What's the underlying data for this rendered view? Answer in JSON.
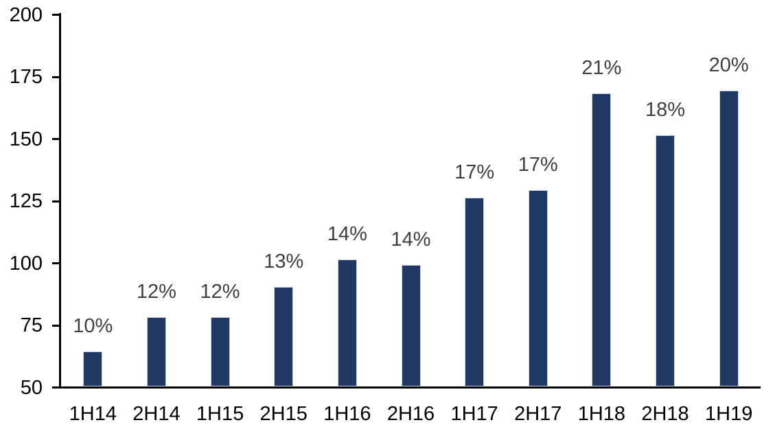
{
  "chart_data": {
    "type": "bar",
    "categories": [
      "1H14",
      "2H14",
      "1H15",
      "2H15",
      "1H16",
      "2H16",
      "1H17",
      "2H17",
      "1H18",
      "2H18",
      "1H19"
    ],
    "values": [
      64,
      78,
      78,
      90,
      101,
      99,
      126,
      129,
      168,
      151,
      169
    ],
    "bar_labels": [
      "10%",
      "12%",
      "12%",
      "13%",
      "14%",
      "14%",
      "17%",
      "17%",
      "21%",
      "18%",
      "20%"
    ],
    "title": "",
    "xlabel": "",
    "ylabel": "",
    "ylim": [
      50,
      200
    ],
    "yticks": [
      50,
      75,
      100,
      125,
      150,
      175,
      200
    ],
    "grid": false,
    "legend": "none",
    "colors": {
      "bar_fill": "#1f3864",
      "bar_border": "#ccd3e0",
      "data_label": "#3f3f3f",
      "axis": "#000000",
      "background": "#ffffff"
    }
  }
}
